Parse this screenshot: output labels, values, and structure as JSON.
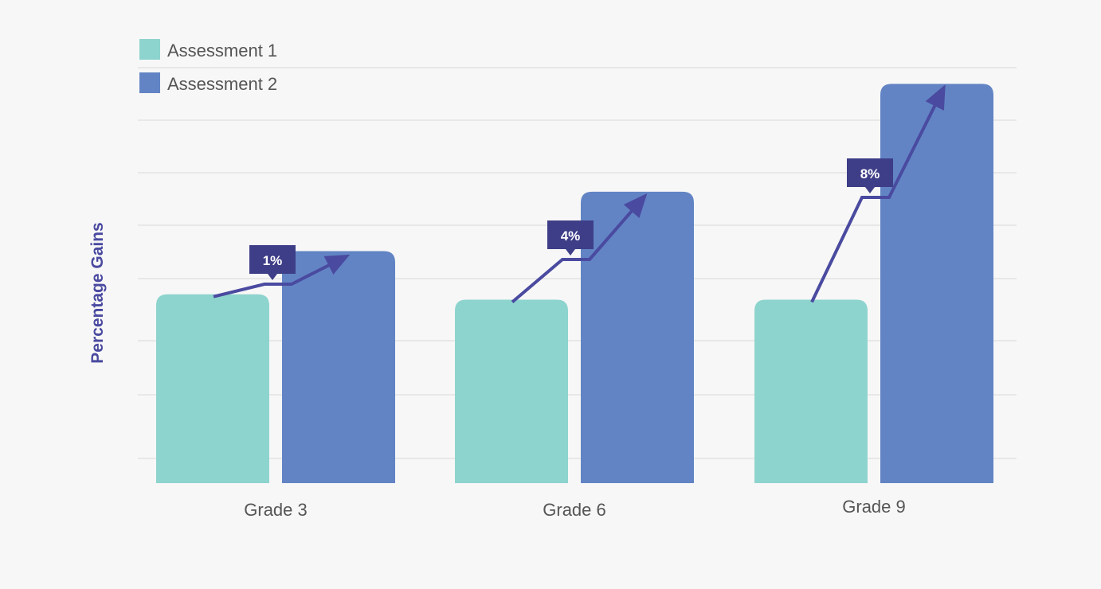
{
  "chart_data": {
    "type": "bar",
    "title": "",
    "xlabel": "",
    "ylabel": "Percentage Gains",
    "categories": [
      "Grade 3",
      "Grade 6",
      "Grade 9"
    ],
    "series": [
      {
        "name": "Assessment 1",
        "values": [
          3.5,
          3.4,
          3.4
        ],
        "color": "#8ed4ce"
      },
      {
        "name": "Assessment 2",
        "values": [
          4.3,
          5.4,
          7.4
        ],
        "color": "#6284c4"
      }
    ],
    "gain_labels": [
      "1%",
      "4%",
      "8%"
    ],
    "ylim": [
      0,
      7.7
    ],
    "grid": true,
    "y_tick_labels_shown": false,
    "legend_position": "top-left",
    "colors": {
      "background": "#f7f7f7",
      "gridline": "#d9d9d9",
      "arrow": "#4a4aa0",
      "badge": "#3e3e88",
      "badge_text": "#ffffff",
      "axis_text": "#555555",
      "ylabel_text": "#4a4aa0"
    }
  }
}
